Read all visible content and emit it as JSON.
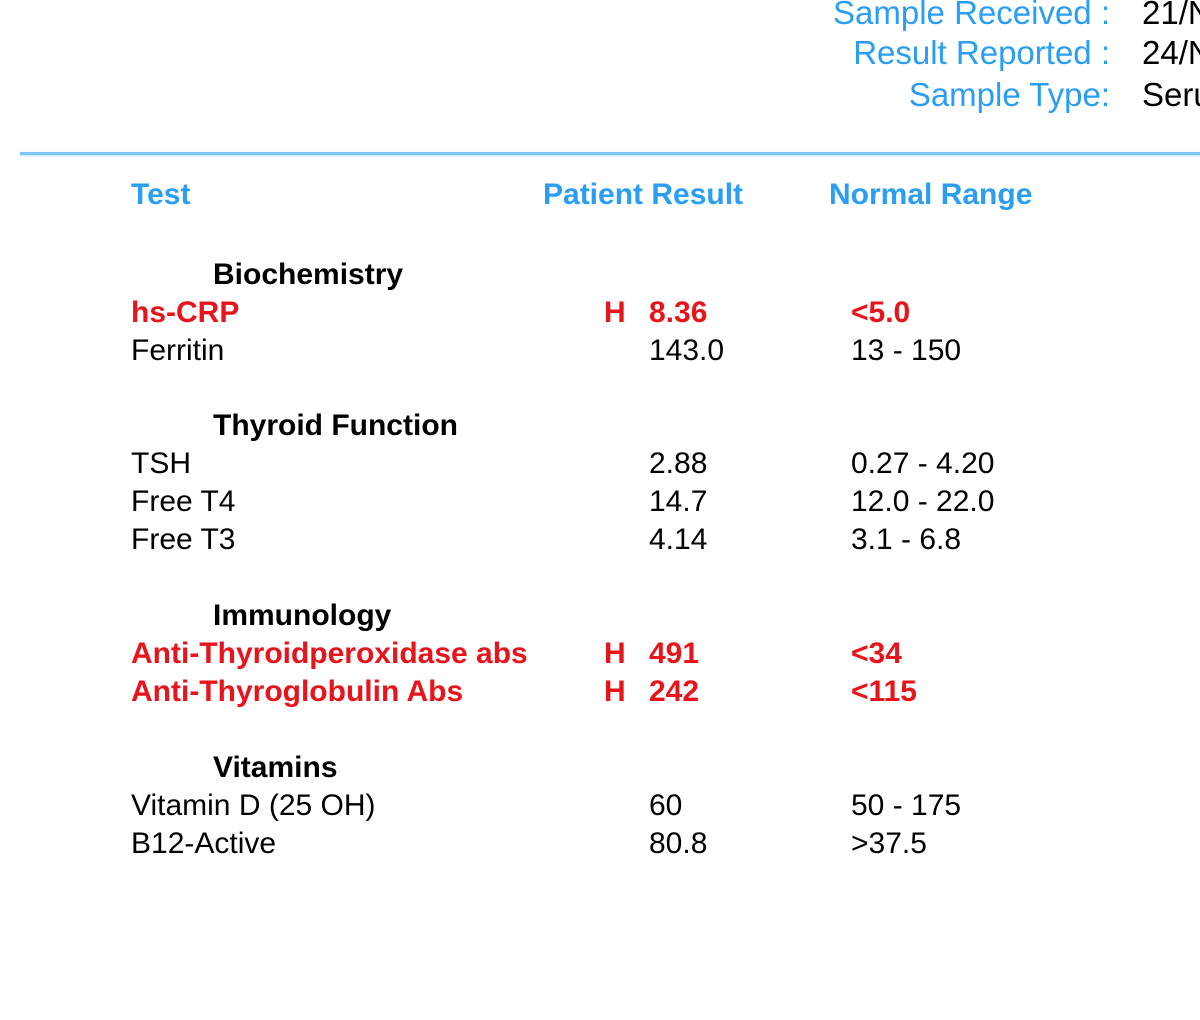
{
  "header": {
    "sample_received_label": "Sample Received :",
    "sample_received_value": "21/N",
    "result_reported_label": "Result Reported :",
    "result_reported_value": "24/N",
    "sample_type_label": "Sample Type:",
    "sample_type_value": "Seru"
  },
  "columns": {
    "test": "Test",
    "result": "Patient Result",
    "range": "Normal Range"
  },
  "colors": {
    "accent_blue": "#2a9df4",
    "abnormal_red": "#e8141b",
    "text": "#000000"
  },
  "sections": [
    {
      "title": "Biochemistry",
      "rows": [
        {
          "test": "hs-CRP",
          "flag": "H",
          "result": "8.36",
          "range": "<5.0",
          "abnormal": true
        },
        {
          "test": "Ferritin",
          "flag": "",
          "result": "143.0",
          "range": "13 - 150",
          "abnormal": false
        }
      ]
    },
    {
      "title": "Thyroid Function",
      "rows": [
        {
          "test": "TSH",
          "flag": "",
          "result": "2.88",
          "range": "0.27 - 4.20",
          "abnormal": false
        },
        {
          "test": "Free T4",
          "flag": "",
          "result": "14.7",
          "range": "12.0 - 22.0",
          "abnormal": false
        },
        {
          "test": "Free T3",
          "flag": "",
          "result": "4.14",
          "range": "3.1 - 6.8",
          "abnormal": false
        }
      ]
    },
    {
      "title": "Immunology",
      "rows": [
        {
          "test": "Anti-Thyroidperoxidase abs",
          "flag": "H",
          "result": "491",
          "range": "<34",
          "abnormal": true
        },
        {
          "test": "Anti-Thyroglobulin Abs",
          "flag": "H",
          "result": "242",
          "range": "<115",
          "abnormal": true
        }
      ]
    },
    {
      "title": "Vitamins",
      "rows": [
        {
          "test": "Vitamin D (25 OH)",
          "flag": "",
          "result": "60",
          "range": "50 - 175",
          "abnormal": false
        },
        {
          "test": "B12-Active",
          "flag": "",
          "result": "80.8",
          "range": ">37.5",
          "abnormal": false
        }
      ]
    }
  ]
}
